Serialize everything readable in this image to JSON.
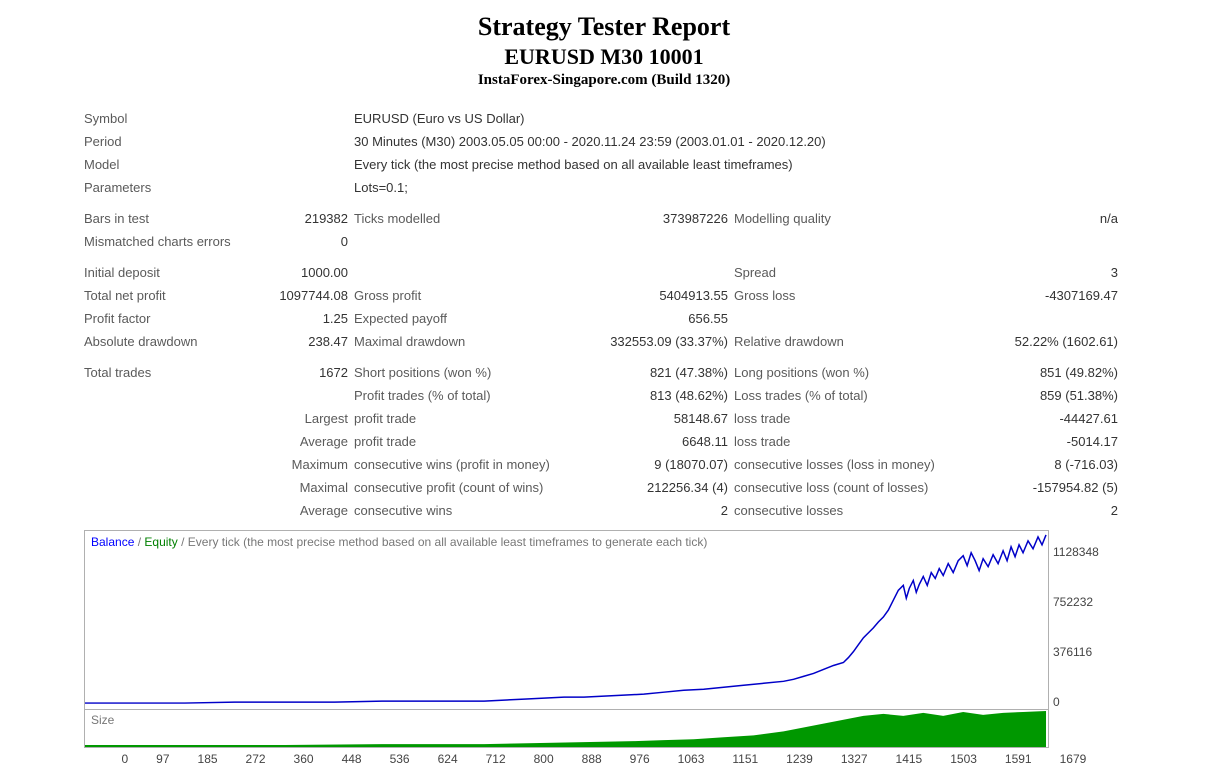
{
  "header": {
    "title": "Strategy Tester Report",
    "subtitle": "EURUSD M30 10001",
    "broker": "InstaForex-Singapore.com (Build 1320)"
  },
  "info": {
    "symbol_label": "Symbol",
    "symbol_value": "EURUSD (Euro vs US Dollar)",
    "period_label": "Period",
    "period_value": "30 Minutes (M30) 2003.05.05 00:00 - 2020.11.24 23:59 (2003.01.01 - 2020.12.20)",
    "model_label": "Model",
    "model_value": "Every tick (the most precise method based on all available least timeframes)",
    "parameters_label": "Parameters",
    "parameters_value": "Lots=0.1;"
  },
  "stats": {
    "bars_in_test_label": "Bars in test",
    "bars_in_test_value": "219382",
    "ticks_modelled_label": "Ticks modelled",
    "ticks_modelled_value": "373987226",
    "modelling_quality_label": "Modelling quality",
    "modelling_quality_value": "n/a",
    "mismatched_label": "Mismatched charts errors",
    "mismatched_value": "0",
    "initial_deposit_label": "Initial deposit",
    "initial_deposit_value": "1000.00",
    "spread_label": "Spread",
    "spread_value": "3",
    "total_net_profit_label": "Total net profit",
    "total_net_profit_value": "1097744.08",
    "gross_profit_label": "Gross profit",
    "gross_profit_value": "5404913.55",
    "gross_loss_label": "Gross loss",
    "gross_loss_value": "-4307169.47",
    "profit_factor_label": "Profit factor",
    "profit_factor_value": "1.25",
    "expected_payoff_label": "Expected payoff",
    "expected_payoff_value": "656.55",
    "absolute_dd_label": "Absolute drawdown",
    "absolute_dd_value": "238.47",
    "maximal_dd_label": "Maximal drawdown",
    "maximal_dd_value": "332553.09 (33.37%)",
    "relative_dd_label": "Relative drawdown",
    "relative_dd_value": "52.22% (1602.61)",
    "total_trades_label": "Total trades",
    "total_trades_value": "1672",
    "short_positions_label": "Short positions (won %)",
    "short_positions_value": "821 (47.38%)",
    "long_positions_label": "Long positions (won %)",
    "long_positions_value": "851 (49.82%)",
    "profit_trades_label": "Profit trades (% of total)",
    "profit_trades_value": "813 (48.62%)",
    "loss_trades_label": "Loss trades (% of total)",
    "loss_trades_value": "859 (51.38%)",
    "largest_label": "Largest",
    "profit_trade_label": "profit trade",
    "largest_profit_trade_value": "58148.67",
    "loss_trade_label": "loss trade",
    "largest_loss_trade_value": "-44427.61",
    "average_label": "Average",
    "avg_profit_trade_value": "6648.11",
    "avg_loss_trade_value": "-5014.17",
    "maximum_label": "Maximum",
    "cons_wins_money_label": "consecutive wins (profit in money)",
    "cons_wins_money_value": "9 (18070.07)",
    "cons_losses_money_label": "consecutive losses (loss in money)",
    "cons_losses_money_value": "8 (-716.03)",
    "maximal_label": "Maximal",
    "cons_profit_count_label": "consecutive profit (count of wins)",
    "cons_profit_count_value": "212256.34 (4)",
    "cons_loss_count_label": "consecutive loss (count of losses)",
    "cons_loss_count_value": "-157954.82 (5)",
    "avg_cons_wins_label": "consecutive wins",
    "avg_cons_wins_value": "2",
    "avg_cons_losses_label": "consecutive losses",
    "avg_cons_losses_value": "2"
  },
  "chart": {
    "legend_balance": "Balance",
    "legend_equity": "Equity",
    "legend_divider": " / ",
    "legend_desc": "Every tick (the most precise method based on all available least timeframes to generate each tick)",
    "size_label": "Size",
    "y_ticks": [
      "1128348",
      "752232",
      "376116",
      "0"
    ],
    "x_ticks": [
      "0",
      "97",
      "185",
      "272",
      "360",
      "448",
      "536",
      "624",
      "712",
      "800",
      "888",
      "976",
      "1063",
      "1151",
      "1239",
      "1327",
      "1415",
      "1503",
      "1591",
      "1679"
    ],
    "balance_color": "#0000c8",
    "equity_color": "#008000",
    "size_color": "#009800",
    "border_color": "#b0b0b0",
    "bg_color": "#ffffff",
    "balance_points": [
      [
        0,
        174
      ],
      [
        50,
        174
      ],
      [
        100,
        174
      ],
      [
        150,
        173
      ],
      [
        200,
        173
      ],
      [
        250,
        173
      ],
      [
        300,
        172
      ],
      [
        350,
        172
      ],
      [
        400,
        172
      ],
      [
        420,
        171
      ],
      [
        440,
        170
      ],
      [
        460,
        169
      ],
      [
        480,
        168
      ],
      [
        500,
        168
      ],
      [
        520,
        167
      ],
      [
        540,
        166
      ],
      [
        560,
        165
      ],
      [
        580,
        163
      ],
      [
        600,
        161
      ],
      [
        620,
        160
      ],
      [
        640,
        158
      ],
      [
        660,
        156
      ],
      [
        680,
        154
      ],
      [
        700,
        152
      ],
      [
        710,
        150
      ],
      [
        720,
        147
      ],
      [
        730,
        144
      ],
      [
        740,
        140
      ],
      [
        750,
        136
      ],
      [
        760,
        133
      ],
      [
        765,
        128
      ],
      [
        770,
        122
      ],
      [
        775,
        115
      ],
      [
        780,
        108
      ],
      [
        785,
        103
      ],
      [
        790,
        98
      ],
      [
        795,
        92
      ],
      [
        800,
        87
      ],
      [
        805,
        80
      ],
      [
        810,
        70
      ],
      [
        815,
        60
      ],
      [
        820,
        55
      ],
      [
        823,
        68
      ],
      [
        826,
        58
      ],
      [
        830,
        50
      ],
      [
        833,
        62
      ],
      [
        836,
        54
      ],
      [
        840,
        46
      ],
      [
        844,
        55
      ],
      [
        848,
        42
      ],
      [
        852,
        48
      ],
      [
        856,
        38
      ],
      [
        860,
        45
      ],
      [
        865,
        33
      ],
      [
        870,
        42
      ],
      [
        875,
        30
      ],
      [
        880,
        25
      ],
      [
        884,
        35
      ],
      [
        888,
        22
      ],
      [
        892,
        30
      ],
      [
        896,
        40
      ],
      [
        900,
        28
      ],
      [
        905,
        36
      ],
      [
        910,
        24
      ],
      [
        915,
        33
      ],
      [
        920,
        20
      ],
      [
        924,
        30
      ],
      [
        928,
        16
      ],
      [
        932,
        26
      ],
      [
        936,
        14
      ],
      [
        940,
        22
      ],
      [
        945,
        10
      ],
      [
        950,
        18
      ],
      [
        955,
        6
      ],
      [
        959,
        14
      ],
      [
        963,
        4
      ]
    ],
    "size_points": [
      [
        0,
        36
      ],
      [
        100,
        36
      ],
      [
        200,
        36
      ],
      [
        300,
        35
      ],
      [
        400,
        35
      ],
      [
        450,
        34
      ],
      [
        500,
        33
      ],
      [
        550,
        32
      ],
      [
        580,
        31
      ],
      [
        610,
        30
      ],
      [
        640,
        28
      ],
      [
        670,
        26
      ],
      [
        700,
        22
      ],
      [
        720,
        18
      ],
      [
        740,
        14
      ],
      [
        760,
        10
      ],
      [
        780,
        6
      ],
      [
        800,
        4
      ],
      [
        820,
        6
      ],
      [
        840,
        3
      ],
      [
        860,
        6
      ],
      [
        880,
        2
      ],
      [
        900,
        5
      ],
      [
        920,
        3
      ],
      [
        940,
        2
      ],
      [
        963,
        1
      ]
    ]
  }
}
